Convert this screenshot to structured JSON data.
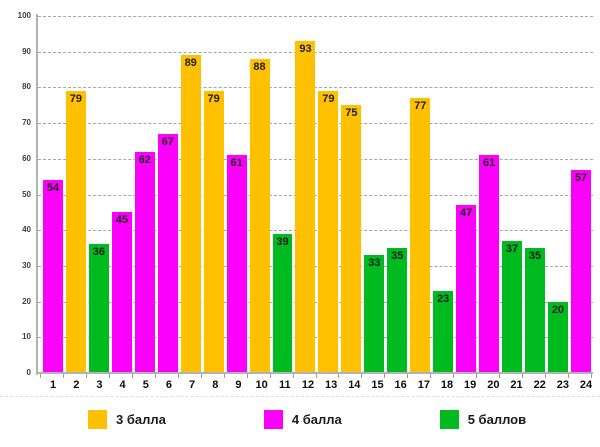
{
  "chart_data": {
    "type": "bar",
    "title": "",
    "xlabel": "",
    "ylabel": "",
    "categories": [
      "1",
      "2",
      "3",
      "4",
      "5",
      "6",
      "7",
      "8",
      "9",
      "10",
      "11",
      "12",
      "13",
      "14",
      "15",
      "16",
      "17",
      "18",
      "19",
      "20",
      "21",
      "22",
      "23",
      "24"
    ],
    "values": [
      54,
      79,
      36,
      45,
      62,
      67,
      89,
      79,
      61,
      88,
      39,
      93,
      79,
      75,
      33,
      35,
      77,
      23,
      47,
      61,
      37,
      35,
      20,
      57
    ],
    "point_groups": [
      "4 балла",
      "3 балла",
      "5 баллов",
      "4 балла",
      "4 балла",
      "4 балла",
      "3 балла",
      "3 балла",
      "4 балла",
      "3 балла",
      "5 баллов",
      "3 балла",
      "3 балла",
      "3 балла",
      "5 баллов",
      "5 баллов",
      "3 балла",
      "5 баллов",
      "4 балла",
      "4 балла",
      "5 баллов",
      "5 баллов",
      "5 баллов",
      "4 балла"
    ],
    "groups": [
      {
        "name": "3 балла",
        "color": "#FFC000"
      },
      {
        "name": "4 балла",
        "color": "#FB00FB"
      },
      {
        "name": "5 баллов",
        "color": "#00BB20"
      }
    ],
    "ylim": [
      0,
      100
    ],
    "yticks": [
      0,
      10,
      20,
      30,
      40,
      50,
      60,
      70,
      80,
      90,
      100
    ],
    "grid": "horizontal-dashed",
    "data_labels": "inside-top",
    "legend_position": "bottom"
  },
  "styles": {
    "gridline_color": "#a6a6a6",
    "axis_color": "#b3b3b3",
    "value_label_color": "#1f1f1f",
    "background": "#ffffff"
  }
}
